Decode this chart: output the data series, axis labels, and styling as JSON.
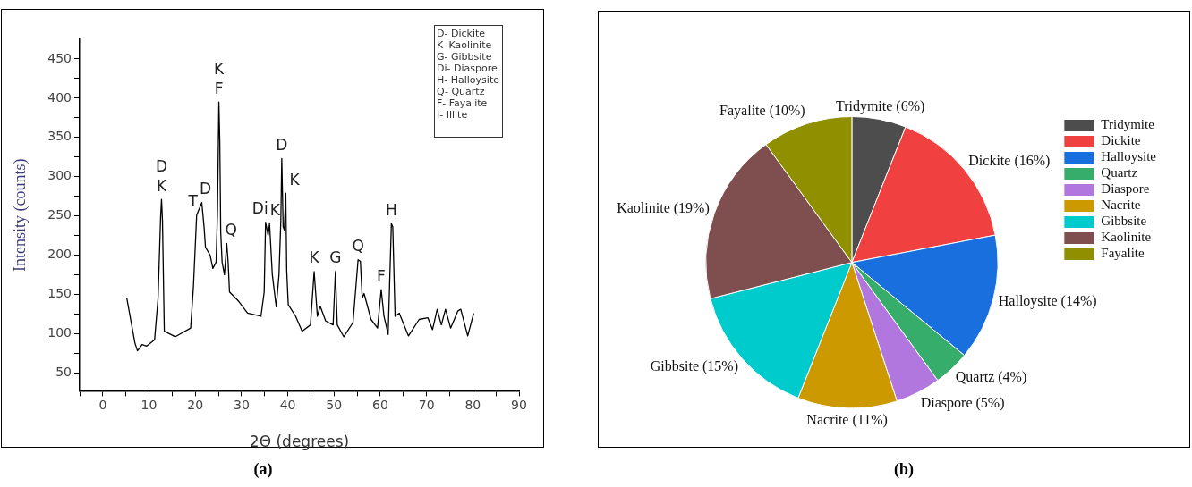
{
  "chart_data": [
    {
      "type": "line",
      "title": "(a)",
      "xlabel": "2Θ (degrees)",
      "ylabel": "Intensity (counts)",
      "legend": false,
      "marker": "none",
      "xlim": [
        -5,
        90
      ],
      "xticks": [
        {
          "value": -5,
          "label": null
        },
        0,
        {
          "value": 5,
          "label": null
        },
        10,
        {
          "value": 15,
          "label": null
        },
        20,
        {
          "value": 25,
          "label": null
        },
        30,
        {
          "value": 35,
          "label": null
        },
        40,
        {
          "value": 45,
          "label": null
        },
        50,
        {
          "value": 55,
          "label": null
        },
        60,
        {
          "value": 65,
          "label": null
        },
        70,
        {
          "value": 75,
          "label": null
        },
        80,
        {
          "value": 85,
          "label": null
        },
        90
      ],
      "ylim": [
        27,
        475
      ],
      "yticks": [
        50,
        {
          "value": 75,
          "label": null
        },
        100,
        {
          "value": 125,
          "label": null
        },
        150,
        {
          "value": 175,
          "label": null
        },
        200,
        {
          "value": 225,
          "label": null
        },
        250,
        {
          "value": 275,
          "label": null
        },
        300,
        {
          "value": 325,
          "label": null
        },
        350,
        {
          "value": 375,
          "label": null
        },
        400,
        {
          "value": 425,
          "label": null
        },
        450
      ],
      "series": [
        {
          "color": "#000000",
          "x": [
            5.2,
            6.95,
            7.5,
            8.5,
            9.5,
            11.2,
            11.95,
            12.5,
            12.7,
            12.9,
            13.3,
            15.7,
            19,
            19.6,
            20.3,
            21.4,
            21.9,
            22.2,
            23.2,
            23.8,
            24.5,
            24.8,
            25.1,
            25.3,
            25.5,
            25.8,
            26.3,
            26.8,
            27.1,
            27.4,
            29.4,
            31.3,
            34.2,
            34.9,
            35.2,
            35.75,
            36.06,
            36.66,
            37.5,
            38.1,
            38.5,
            38.7,
            39,
            39.25,
            39.57,
            39.77,
            40.1,
            41.7,
            43.1,
            44.9,
            45.7,
            46.4,
            47,
            48.2,
            49.8,
            50.3,
            50.7,
            52.1,
            54.1,
            55.2,
            55.7,
            56.1,
            56.5,
            58,
            59.4,
            60.2,
            60.8,
            61.7,
            62.4,
            62.7,
            63.2,
            64.1,
            66.1,
            68.4,
            70.3,
            71.3,
            72.3,
            73.2,
            74.1,
            75.2,
            76.8,
            77.4,
            78.9,
            80.2
          ],
          "values": [
            145,
            88,
            78,
            86,
            84,
            92,
            145,
            248,
            271,
            244,
            103,
            96,
            107,
            160,
            251,
            267,
            236,
            210,
            200,
            183,
            191,
            255,
            395,
            345,
            229,
            191,
            175,
            215,
            191,
            153,
            141,
            126,
            122,
            153,
            242,
            225,
            240,
            175,
            134,
            175,
            244,
            323,
            236,
            232,
            279,
            180,
            137,
            122,
            103,
            111,
            179,
            122,
            135,
            116,
            111,
            179,
            111,
            96,
            114,
            194,
            192,
            145,
            151,
            118,
            107,
            156,
            122,
            99,
            240,
            236,
            122,
            126,
            97,
            118,
            120,
            105,
            131,
            111,
            131,
            107,
            129,
            131,
            97,
            126
          ]
        }
      ],
      "annotations": [
        {
          "text": "D",
          "x": 12.7,
          "y": 271
        },
        {
          "text": "K",
          "x": 12.7,
          "y": 271
        },
        {
          "text": "T",
          "x": 20.3,
          "y": 251
        },
        {
          "text": "D",
          "x": 21.4,
          "y": 267
        },
        {
          "text": "K",
          "x": 25.1,
          "y": 395
        },
        {
          "text": "F",
          "x": 25.1,
          "y": 395
        },
        {
          "text": "Q",
          "x": 26.8,
          "y": 215
        },
        {
          "text": "Di",
          "x": 35.2,
          "y": 242
        },
        {
          "text": "K",
          "x": 36.06,
          "y": 240
        },
        {
          "text": "D",
          "x": 38.7,
          "y": 323
        },
        {
          "text": "K",
          "x": 39.57,
          "y": 279
        },
        {
          "text": "K",
          "x": 45.7,
          "y": 179
        },
        {
          "text": "G",
          "x": 50.3,
          "y": 179
        },
        {
          "text": "Q",
          "x": 55.2,
          "y": 194
        },
        {
          "text": "F",
          "x": 60.2,
          "y": 156
        },
        {
          "text": "H",
          "x": 62.4,
          "y": 240
        },
        "D- Dickite",
        "K- Kaolinite",
        "G- Gibbsite",
        "Di- Diaspore",
        "H- Halloysite",
        "Q- Quartz",
        "F- Fayalite",
        "I- Illite"
      ]
    },
    {
      "type": "pie",
      "title": "(b)",
      "legend": "top right",
      "categories": [
        "Tridymite",
        "Dickite",
        "Halloysite",
        "Quartz",
        "Diaspore",
        "Nacrite",
        "Gibbsite",
        "Kaolinite",
        "Fayalite"
      ],
      "values": [
        6,
        16,
        14,
        4,
        5,
        11,
        15,
        19,
        10
      ],
      "colors": [
        "#4d4d4d",
        "#f04040",
        "#1a6fdf",
        "#37ad6b",
        "#b177de",
        "#cc9900",
        "#00cbcc",
        "#7f4e4e",
        "#8f8f00"
      ],
      "value_labels": [
        "Tridymite (6%)",
        "Dickite (16%)",
        "Halloysite (14%)",
        "Quartz (4%)",
        "Diaspore (5%)",
        "Nacrite (11%)",
        "Gibbsite (15%)",
        "Kaolinite (19%)",
        "Fayalite (10%)"
      ]
    }
  ]
}
